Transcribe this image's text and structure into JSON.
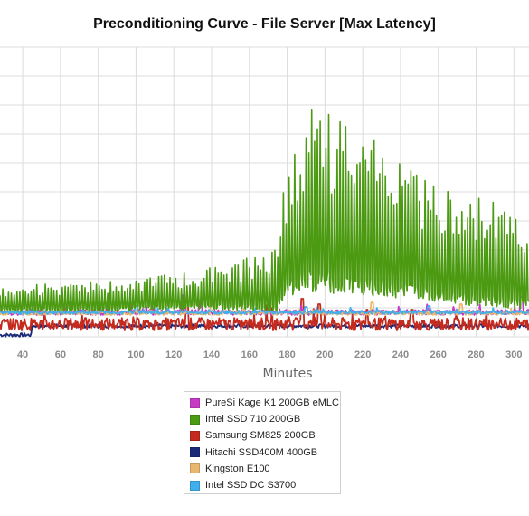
{
  "chart_data": {
    "type": "line",
    "title": "Preconditioning Curve - File Server [Max Latency]",
    "xlabel": "Minutes",
    "ylabel": "",
    "x_ticks": [
      40,
      60,
      80,
      100,
      120,
      140,
      160,
      180,
      200,
      220,
      240,
      260,
      280,
      300
    ],
    "xlim": [
      28,
      308
    ],
    "ylim": [
      0,
      320
    ],
    "grid": true,
    "legend_position": "bottom-center",
    "series": [
      {
        "name": "PureSi Kage K1 200GB eMLC",
        "color": "#c63ac6",
        "base": 27,
        "amp": 3,
        "spikes": [
          [
            125,
            46
          ],
          [
            304,
            44
          ],
          [
            134,
            40
          ]
        ],
        "style": "noise"
      },
      {
        "name": "Intel SSD 710 200GB",
        "color": "#4c9a12",
        "style": "osc",
        "segments": [
          [
            28,
            55,
            28,
            55
          ],
          [
            80,
            40,
            28,
            62
          ],
          [
            120,
            48,
            30,
            70
          ],
          [
            150,
            44,
            30,
            80
          ],
          [
            175,
            40,
            28,
            100
          ],
          [
            178,
            110,
            40,
            170
          ],
          [
            190,
            150,
            50,
            260
          ],
          [
            215,
            130,
            45,
            235
          ],
          [
            250,
            100,
            40,
            180
          ],
          [
            300,
            70,
            30,
            140
          ],
          [
            308,
            60,
            30,
            120
          ]
        ]
      },
      {
        "name": "Samsung SM825 200GB",
        "color": "#c42a1e",
        "base": 14,
        "amp": 7,
        "spikes": [
          [
            127,
            38
          ],
          [
            188,
            42
          ],
          [
            197,
            36
          ],
          [
            222,
            30
          ],
          [
            246,
            30
          ]
        ],
        "style": "noise"
      },
      {
        "name": "Hitachi SSD400M 400GB",
        "color": "#1a2a78",
        "base_left": 2,
        "base_right": 12,
        "amp": 2,
        "spikes": [],
        "style": "hitachi"
      },
      {
        "name": "Kingston E100",
        "color": "#e8b76e",
        "base": 26,
        "amp": 2,
        "spikes": [
          [
            140,
            40
          ],
          [
            225,
            38
          ],
          [
            272,
            36
          ]
        ],
        "style": "noise"
      },
      {
        "name": "Intel SSD DC S3700",
        "color": "#40b0ec",
        "base": 27,
        "amp": 2,
        "spikes": [
          [
            100,
            34
          ],
          [
            190,
            33
          ],
          [
            255,
            34
          ]
        ],
        "style": "noise"
      }
    ]
  }
}
